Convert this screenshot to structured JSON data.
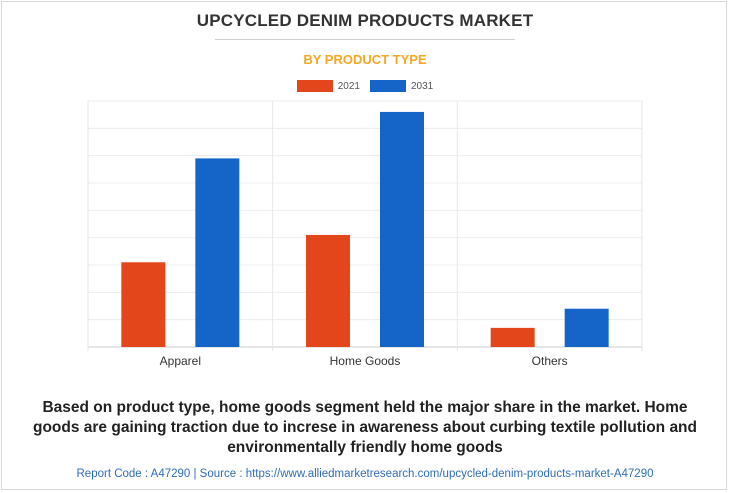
{
  "chart_data": {
    "type": "bar",
    "title": "UPCYCLED DENIM PRODUCTS MARKET",
    "subtitle": "BY PRODUCT TYPE",
    "categories": [
      "Apparel",
      "Home Goods",
      "Others"
    ],
    "series": [
      {
        "name": "2021",
        "color": "#e2461a",
        "values": [
          31,
          41,
          7
        ]
      },
      {
        "name": "2031",
        "color": "#1565c8",
        "values": [
          69,
          86,
          14
        ]
      }
    ],
    "ylim": [
      0,
      90
    ],
    "y_gridlines": 9,
    "xlabel": "",
    "ylabel": "",
    "grid": true,
    "legend_position": "top-center"
  },
  "caption": "Based on product type, home goods segment held the major share in the market. Home goods are gaining traction due to increse in awareness about curbing textile pollution and environmentally friendly home goods",
  "footer": "Report Code : A47290  |  Source : https://www.alliedmarketresearch.com/upcycled-denim-products-market-A47290"
}
